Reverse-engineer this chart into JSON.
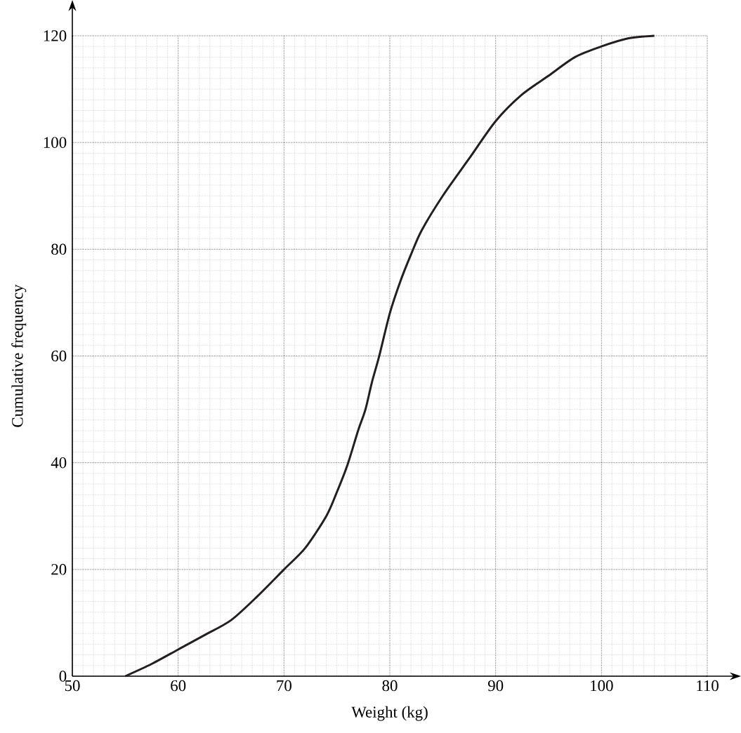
{
  "chart_data": {
    "type": "line",
    "xlabel": "Weight (kg)",
    "ylabel": "Cumulative frequency",
    "x": [
      55,
      57.5,
      60,
      62.5,
      65,
      67.5,
      70,
      72,
      74,
      75,
      76,
      77,
      77.7,
      78.3,
      79,
      80,
      81,
      82,
      83,
      85,
      87.5,
      90,
      92.5,
      95,
      97.5,
      100,
      102.5,
      105
    ],
    "series": [
      {
        "color": "#231f20",
        "values": [
          0,
          2.3,
          5,
          7.7,
          10.5,
          15,
          20,
          24,
          30,
          34.5,
          39.6,
          46,
          50,
          55,
          60,
          68,
          74,
          79,
          83.5,
          90,
          97,
          104,
          109,
          112.5,
          116,
          118,
          119.5,
          120
        ]
      }
    ],
    "xlim": [
      50,
      110
    ],
    "ylim": [
      0,
      120
    ],
    "xticks": [
      50,
      60,
      70,
      80,
      90,
      100,
      110
    ],
    "yticks": [
      0,
      20,
      40,
      60,
      80,
      100,
      120
    ],
    "grid": true,
    "marker": "none",
    "line_style": "solid"
  }
}
